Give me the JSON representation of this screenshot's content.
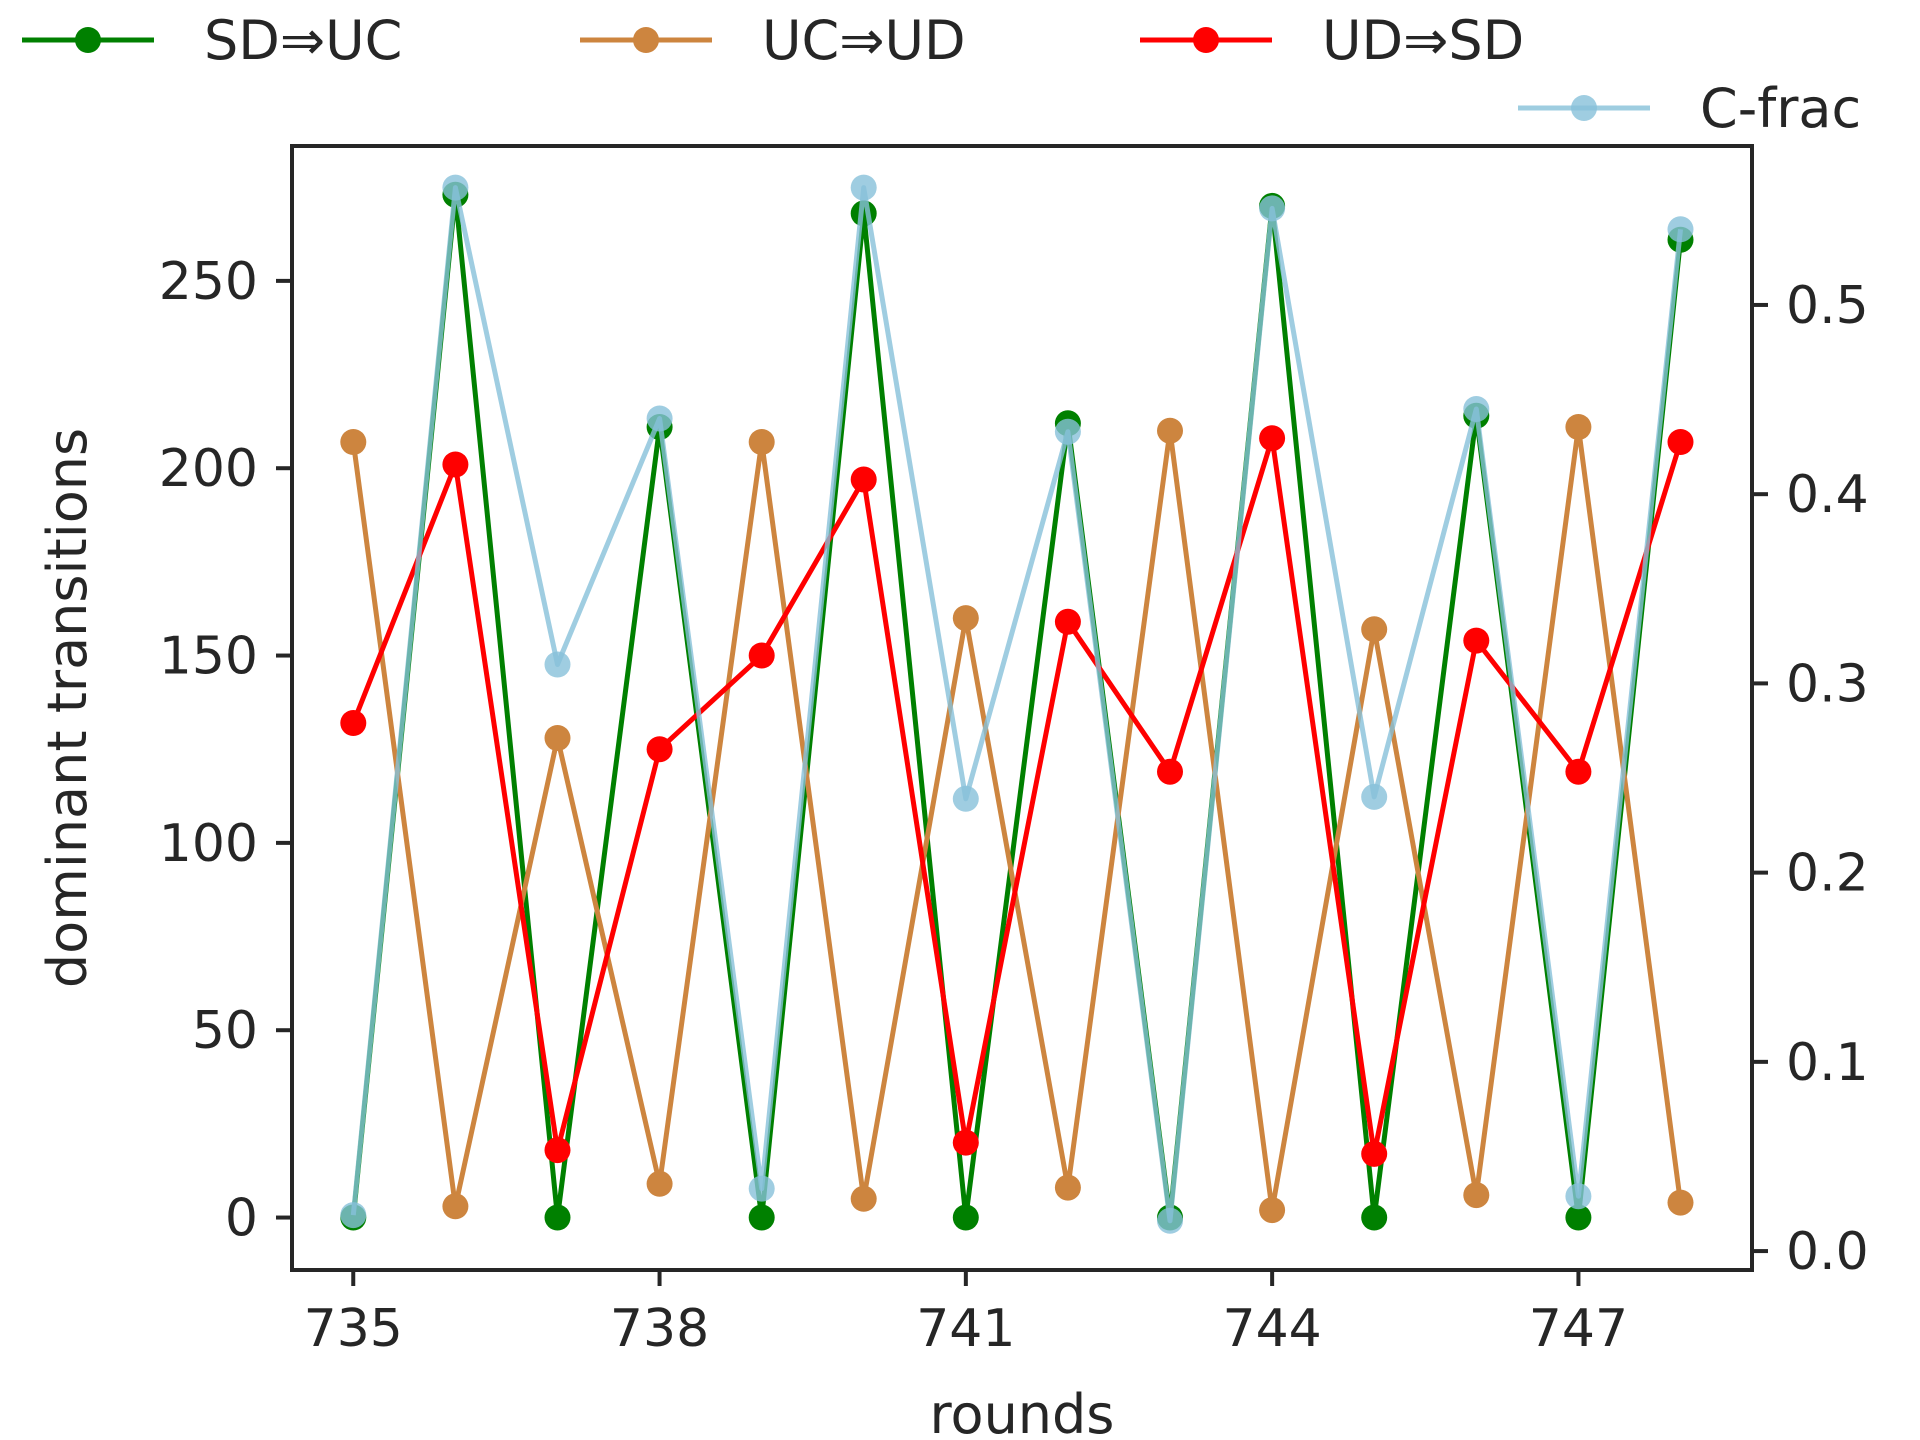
{
  "chart_data": {
    "type": "line",
    "xlabel": "rounds",
    "ylabel": "dominant transitions",
    "x": [
      735,
      736,
      737,
      738,
      739,
      740,
      741,
      742,
      743,
      744,
      745,
      746,
      747,
      748
    ],
    "x_ticks": [
      "735",
      "738",
      "741",
      "744",
      "747"
    ],
    "x_tick_values": [
      735,
      738,
      741,
      744,
      747
    ],
    "xlim": [
      734.4,
      748.7
    ],
    "y_left": {
      "lim": [
        -14,
        286
      ],
      "ticks": [
        "0",
        "50",
        "100",
        "150",
        "200",
        "250"
      ],
      "tick_values": [
        0,
        50,
        100,
        150,
        200,
        250
      ]
    },
    "y_right": {
      "lim": [
        -0.01,
        0.584
      ],
      "ticks": [
        "0.0",
        "0.1",
        "0.2",
        "0.3",
        "0.4",
        "0.5"
      ],
      "tick_values": [
        0.0,
        0.1,
        0.2,
        0.3,
        0.4,
        0.5
      ]
    },
    "series": [
      {
        "name": "SD⇒UC",
        "axis": "left",
        "color": "#008000",
        "values": [
          0,
          273,
          0,
          211,
          0,
          268,
          0,
          212,
          0,
          270,
          0,
          214,
          0,
          261
        ]
      },
      {
        "name": "UC⇒UD",
        "axis": "left",
        "color": "#cd853f",
        "values": [
          207,
          3,
          128,
          9,
          207,
          5,
          160,
          8,
          210,
          2,
          157,
          6,
          211,
          4
        ]
      },
      {
        "name": "UD⇒SD",
        "axis": "left",
        "color": "#ff0000",
        "values": [
          132,
          201,
          18,
          125,
          150,
          197,
          20,
          159,
          119,
          208,
          17,
          154,
          119,
          207
        ]
      },
      {
        "name": "C-frac",
        "axis": "right",
        "color": "#87c1d9",
        "values": [
          0.019,
          0.562,
          0.31,
          0.44,
          0.033,
          0.562,
          0.239,
          0.433,
          0.016,
          0.551,
          0.24,
          0.445,
          0.029,
          0.54
        ]
      }
    ],
    "legend": "top, outside plot",
    "grid": false
  }
}
